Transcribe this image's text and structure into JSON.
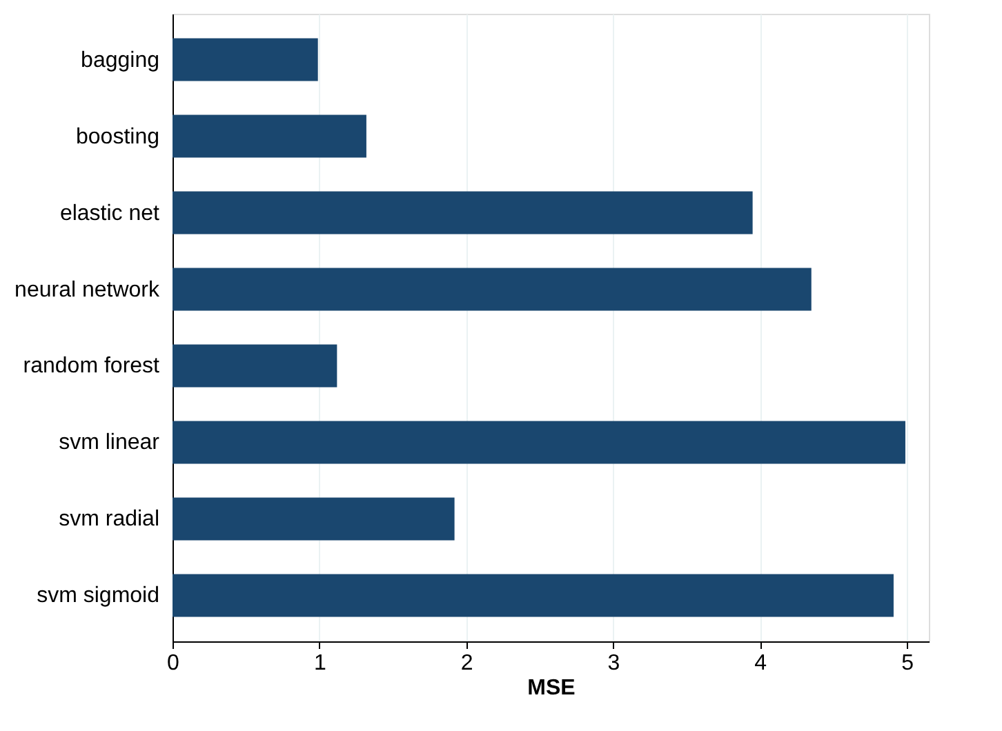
{
  "chart_data": {
    "type": "bar",
    "orientation": "horizontal",
    "xlabel": "MSE",
    "categories": [
      "bagging",
      "boosting",
      "elastic net",
      "neural network",
      "random forest",
      "svm linear",
      "svm radial",
      "svm sigmoid"
    ],
    "values": [
      0.99,
      1.32,
      3.95,
      4.35,
      1.12,
      4.99,
      1.92,
      4.91
    ],
    "color": "#1a476f",
    "xlim": [
      0,
      5.15
    ],
    "xticks": [
      0,
      1,
      2,
      3,
      4,
      5
    ],
    "grid": "x"
  }
}
